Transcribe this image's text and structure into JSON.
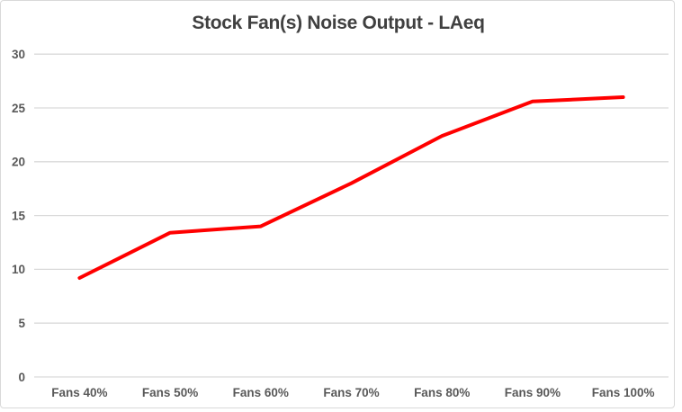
{
  "title": "Stock Fan(s) Noise Output - LAeq",
  "colors": {
    "line": "#ff0000",
    "grid": "#d9d9d9",
    "tick_text": "#595959",
    "title_text": "#404040",
    "frame_border": "#d9d9d9",
    "background": "#ffffff"
  },
  "chart_data": {
    "type": "line",
    "title": "Stock Fan(s) Noise Output - LAeq",
    "categories": [
      "Fans 40%",
      "Fans 50%",
      "Fans 60%",
      "Fans 70%",
      "Fans 80%",
      "Fans 90%",
      "Fans 100%"
    ],
    "series": [
      {
        "name": "Stock Fan(s) Noise Output - LAeq",
        "values": [
          9.2,
          13.4,
          14,
          18,
          22.4,
          25.6,
          26
        ]
      }
    ],
    "xlabel": "",
    "ylabel": "",
    "ylim": [
      0,
      30
    ],
    "yticks": [
      0,
      5,
      10,
      15,
      20,
      25,
      30
    ],
    "grid": true,
    "legend_position": "none"
  }
}
